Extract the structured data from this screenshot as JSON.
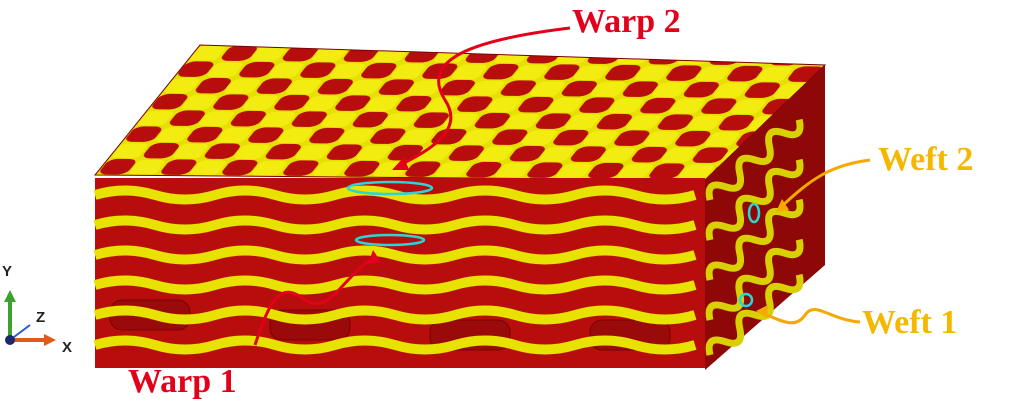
{
  "labels": {
    "warp_2": "Warp 2",
    "warp_1": "Warp 1",
    "weft_2": "Weft 2",
    "weft_1": "Weft 1"
  },
  "axes": {
    "y": "Y",
    "z": "Z",
    "x": "X"
  }
}
